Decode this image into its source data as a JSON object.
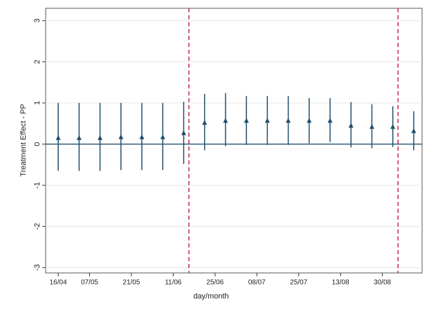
{
  "chart_data": {
    "type": "errorbar",
    "x_label": "day/month",
    "y_label": "Treatment Effect - PP",
    "x": [
      1,
      2,
      3,
      4,
      5,
      6,
      7,
      8,
      9,
      10,
      11,
      12,
      13,
      14,
      15,
      16,
      17,
      18
    ],
    "values": [
      0.15,
      0.15,
      0.15,
      0.17,
      0.17,
      0.17,
      0.27,
      0.52,
      0.57,
      0.57,
      0.57,
      0.57,
      0.57,
      0.57,
      0.45,
      0.42,
      0.42,
      0.32
    ],
    "lower": [
      -0.65,
      -0.65,
      -0.65,
      -0.63,
      -0.63,
      -0.63,
      -0.48,
      -0.15,
      -0.05,
      -0.02,
      -0.02,
      -0.02,
      0.02,
      0.05,
      -0.08,
      -0.1,
      -0.07,
      -0.15
    ],
    "upper": [
      1.0,
      1.0,
      1.0,
      1.0,
      1.0,
      1.0,
      1.03,
      1.22,
      1.24,
      1.17,
      1.17,
      1.17,
      1.12,
      1.12,
      1.02,
      0.97,
      0.92,
      0.8
    ],
    "color": "#1f4e6e",
    "xlim": [
      0.4,
      18.4
    ],
    "xticks": [
      {
        "value": 1,
        "label": "16/04"
      },
      {
        "value": 2.5,
        "label": "07/05"
      },
      {
        "value": 4.5,
        "label": "21/05"
      },
      {
        "value": 6.5,
        "label": "11/06"
      },
      {
        "value": 8.5,
        "label": "25/06"
      },
      {
        "value": 10.5,
        "label": "08/07"
      },
      {
        "value": 12.5,
        "label": "25/07"
      },
      {
        "value": 14.5,
        "label": "13/08"
      },
      {
        "value": 16.5,
        "label": "30/08"
      }
    ],
    "ylim": [
      -3.13,
      3.3
    ],
    "yticks": [
      -3,
      -2,
      -1,
      0,
      1,
      2,
      3
    ],
    "grid": true,
    "yline": 0,
    "xlines": [
      7.25,
      17.25
    ],
    "xline_color": "#c8285a"
  }
}
